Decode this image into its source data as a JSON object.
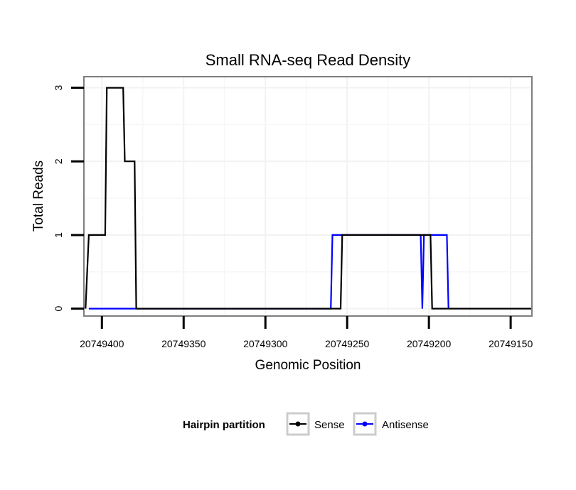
{
  "chart_data": {
    "type": "line",
    "title": "Small RNA-seq Read Density",
    "xlabel": "Genomic Position",
    "ylabel": "Total Reads",
    "x_reversed": true,
    "xlim": [
      20749411,
      20749137
    ],
    "ylim": [
      -0.1,
      3.15
    ],
    "x_ticks": [
      20749400,
      20749350,
      20749300,
      20749250,
      20749200,
      20749150
    ],
    "x_tick_labels": [
      "20749400",
      "20749350",
      "20749300",
      "20749250",
      "20749200",
      "20749150"
    ],
    "y_ticks": [
      0,
      1,
      2,
      3
    ],
    "y_tick_labels": [
      "0",
      "1",
      "2",
      "3"
    ],
    "grid": true,
    "legend": {
      "title": "Hairpin partition",
      "position": "bottom",
      "entries": [
        "Sense",
        "Antisense"
      ]
    },
    "series": [
      {
        "name": "Sense",
        "color": "#000000",
        "x": [
          20749410,
          20749408,
          20749398,
          20749397,
          20749387,
          20749386,
          20749380,
          20749379,
          20749260,
          20749254,
          20749253,
          20749199,
          20749198,
          20749137
        ],
        "y": [
          0,
          1,
          1,
          3,
          3,
          2,
          2,
          0,
          0,
          0,
          1,
          1,
          0,
          0
        ]
      },
      {
        "name": "Antisense",
        "color": "#0000ff",
        "x": [
          20749408,
          20749380,
          20749260,
          20749259,
          20749205,
          20749204,
          20749203,
          20749189,
          20749188
        ],
        "y": [
          0,
          0,
          0,
          1,
          1,
          0,
          1,
          1,
          0
        ]
      }
    ]
  }
}
